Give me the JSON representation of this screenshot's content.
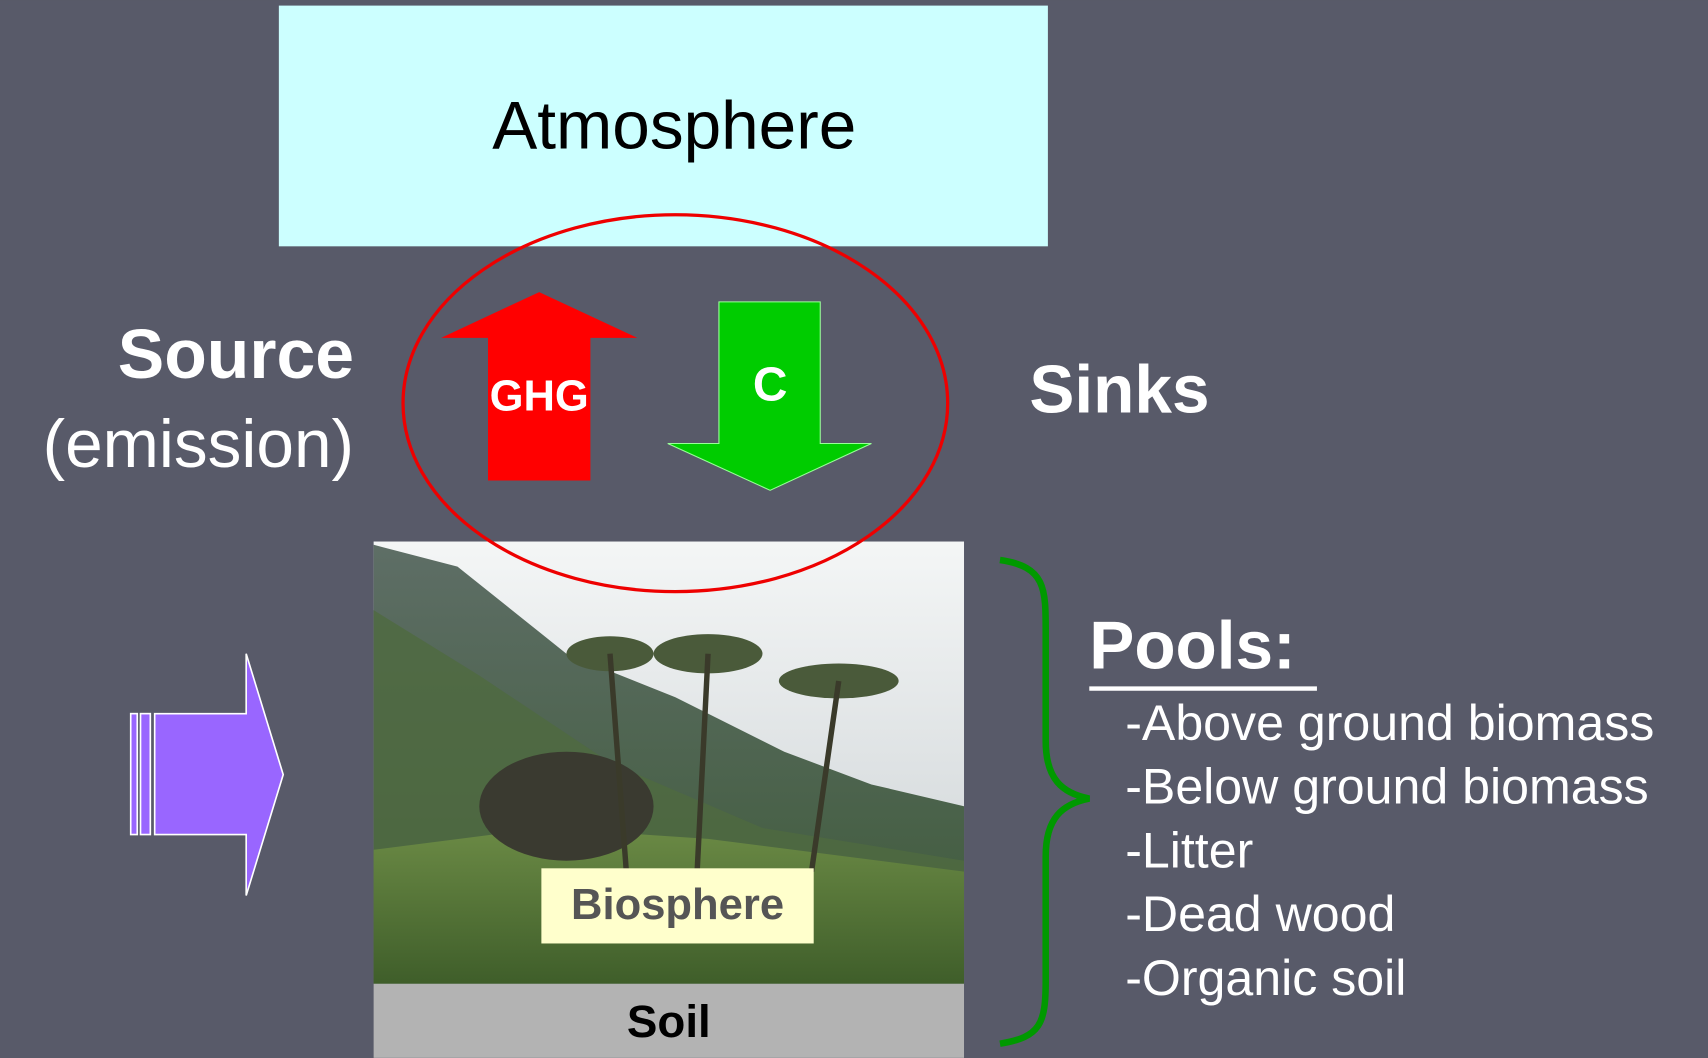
{
  "atmosphere": "Atmosphere",
  "source": {
    "title": "Source",
    "subtitle": "(emission)"
  },
  "sinks": "Sinks",
  "flows": {
    "up": "GHG",
    "down": "C"
  },
  "biosphere": "Biosphere",
  "soil": "Soil",
  "pools": {
    "title": "Pools:",
    "items": [
      "-Above ground biomass",
      "-Below ground biomass",
      "-Litter",
      "-Dead wood",
      "-Organic soil"
    ]
  }
}
